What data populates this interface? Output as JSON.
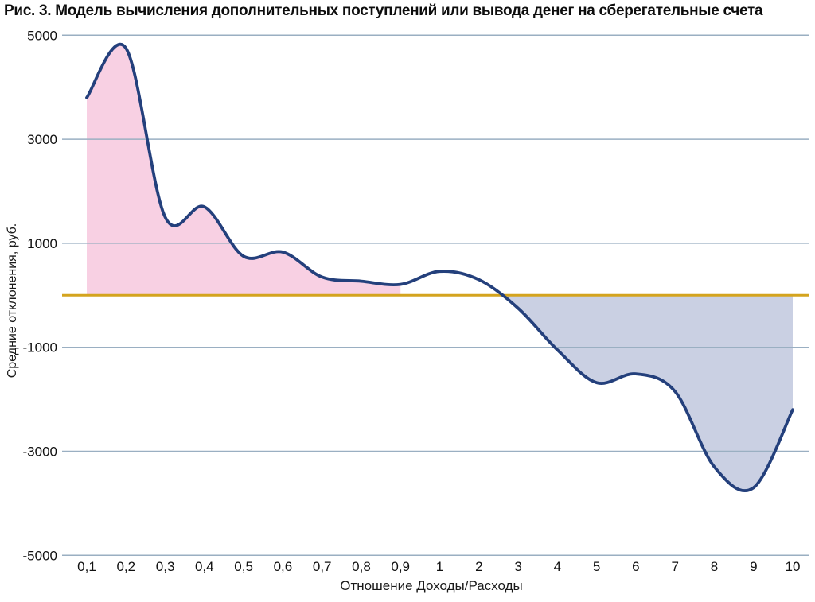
{
  "chart_data": {
    "type": "area",
    "title": "Рис. 3. Модель вычисления дополнительных поступлений или вывода денег на сберегательные счета",
    "xlabel": "Отношение Доходы/Расходы",
    "ylabel": "Средние отклонения, руб.",
    "categories": [
      "0,1",
      "0,2",
      "0,3",
      "0,4",
      "0,5",
      "0,6",
      "0,7",
      "0,8",
      "0,9",
      "1",
      "2",
      "3",
      "4",
      "5",
      "6",
      "7",
      "8",
      "9",
      "10"
    ],
    "values": [
      3800,
      4750,
      1500,
      1700,
      750,
      830,
      350,
      270,
      210,
      460,
      300,
      -250,
      -1050,
      -1680,
      -1510,
      -1850,
      -3300,
      -3700,
      -2200
    ],
    "ylim": [
      -5000,
      5000
    ],
    "yticks": [
      5000,
      3000,
      1000,
      -1000,
      -3000,
      -5000
    ],
    "grid": true,
    "legend": "none",
    "smooth": true,
    "areas": [
      {
        "name": "positive-pink-area",
        "x_from": "0,1",
        "x_to": "0,9",
        "side": "above-zero"
      },
      {
        "name": "negative-blue-area",
        "x_from": "0,9",
        "x_to": "10",
        "side": "below-zero"
      }
    ]
  },
  "colors": {
    "line": "#24407C",
    "positive_fill": "#F8D0E3",
    "negative_fill": "#CAD0E3",
    "zero_line": "#D4A41E",
    "gridline": "#9AAFC2",
    "text": "#111111",
    "background": "#FFFFFF"
  }
}
